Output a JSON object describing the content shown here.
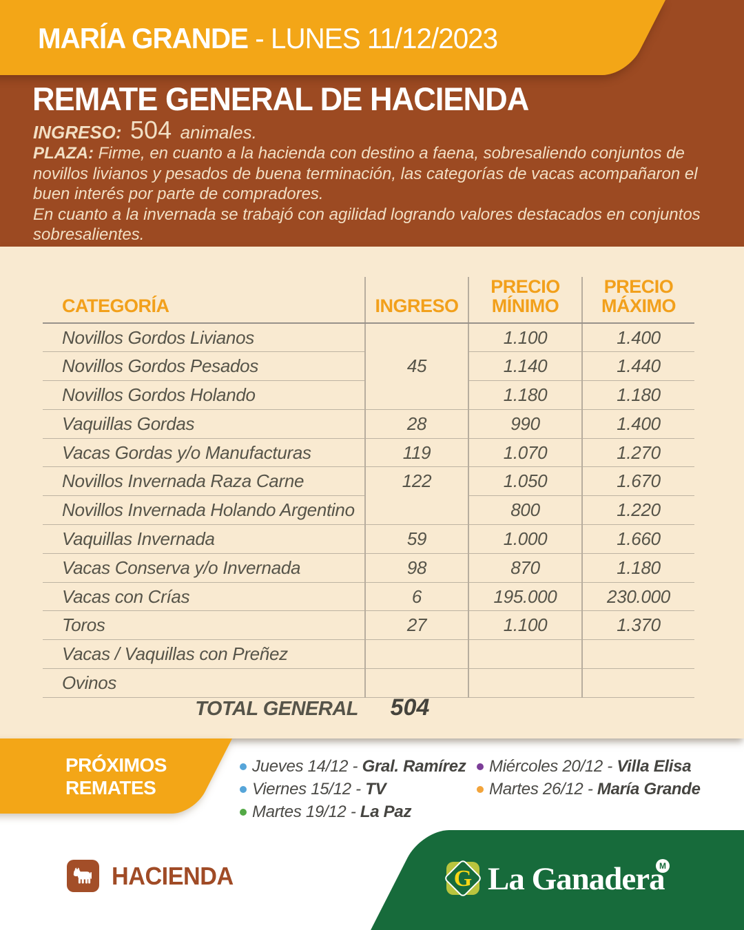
{
  "colors": {
    "orange": "#F3A617",
    "brown": "#9C4A22",
    "cream": "#F9EAD1",
    "green": "#176B3B",
    "table_header_text": "#F2A01B",
    "hacienda_brown": "#A04B26"
  },
  "banner": {
    "location": "MARÍA GRANDE",
    "date": " - LUNES 11/12/2023"
  },
  "hero": {
    "title": "REMATE GENERAL DE HACIENDA",
    "ingreso_label": "INGRESO:",
    "ingreso_value": "504",
    "ingreso_suffix": "animales.",
    "plaza_label": "PLAZA:",
    "plaza_text": " Firme, en cuanto a la hacienda con destino a faena, sobresaliendo conjuntos de novillos livianos y pesados de buena terminación, las categorías de vacas acompañaron el buen interés por parte de compradores.",
    "plaza_text2": "En cuanto a la invernada se trabajó con agilidad logrando valores destacados en conjuntos sobresalientes."
  },
  "table": {
    "headers": [
      "CATEGORÍA",
      "INGRESO",
      "PRECIO\nMÍNIMO",
      "PRECIO\nMÁXIMO"
    ],
    "rows": [
      {
        "category": "Novillos Gordos Livianos",
        "ingreso": "45",
        "ingreso_span": 3,
        "min": "1.100",
        "max": "1.400"
      },
      {
        "category": "Novillos Gordos Pesados",
        "ingreso_span": 0,
        "min": "1.140",
        "max": "1.440"
      },
      {
        "category": "Novillos Gordos Holando",
        "ingreso_span": 0,
        "min": "1.180",
        "max": "1.180"
      },
      {
        "category": "Vaquillas Gordas",
        "ingreso": "28",
        "ingreso_span": 1,
        "min": "990",
        "max": "1.400"
      },
      {
        "category": "Vacas Gordas y/o Manufacturas",
        "ingreso": "119",
        "ingreso_span": 1,
        "min": "1.070",
        "max": "1.270"
      },
      {
        "category": "Novillos Invernada Raza Carne",
        "ingreso": "122",
        "ingreso_span": 2,
        "ingreso_valign": "top",
        "min": "1.050",
        "max": "1.670"
      },
      {
        "category": "Novillos Invernada Holando Argentino",
        "ingreso_span": 0,
        "min": "800",
        "max": "1.220"
      },
      {
        "category": "Vaquillas Invernada",
        "ingreso": "59",
        "ingreso_span": 1,
        "min": "1.000",
        "max": "1.660"
      },
      {
        "category": "Vacas Conserva y/o Invernada",
        "ingreso": "98",
        "ingreso_span": 1,
        "min": "870",
        "max": "1.180"
      },
      {
        "category": "Vacas con Crías",
        "ingreso": "6",
        "ingreso_span": 1,
        "min": "195.000",
        "max": "230.000"
      },
      {
        "category": "Toros",
        "ingreso": "27",
        "ingreso_span": 1,
        "min": "1.100",
        "max": "1.370"
      },
      {
        "category": "Vacas / Vaquillas con Preñez",
        "ingreso": "",
        "ingreso_span": 1,
        "min": "",
        "max": ""
      },
      {
        "category": "Ovinos",
        "ingreso": "",
        "ingreso_span": 1,
        "min": "",
        "max": ""
      }
    ],
    "total_label": "TOTAL GENERAL",
    "total_value": "504"
  },
  "upcoming": {
    "tag_line1": "PRÓXIMOS",
    "tag_line2": "REMATES",
    "columns": [
      [
        {
          "date": "Jueves 14/12 - ",
          "place": "Gral. Ramírez",
          "color": "#56A5D9"
        },
        {
          "date": "Viernes 15/12 - ",
          "place": "TV",
          "color": "#56A5D9"
        },
        {
          "date": "Martes 19/12 - ",
          "place": "La Paz",
          "color": "#53A946"
        }
      ],
      [
        {
          "date": "Miércoles 20/12 - ",
          "place": "Villa Elisa",
          "color": "#7C3E98"
        },
        {
          "date": "Martes 26/12 - ",
          "place": "María Grande",
          "color": "#F2A43B"
        }
      ]
    ]
  },
  "footer": {
    "hacienda_label": "HACIENDA",
    "brand": "La Ganadera",
    "brand_initial": "G",
    "brand_mark": "M"
  }
}
